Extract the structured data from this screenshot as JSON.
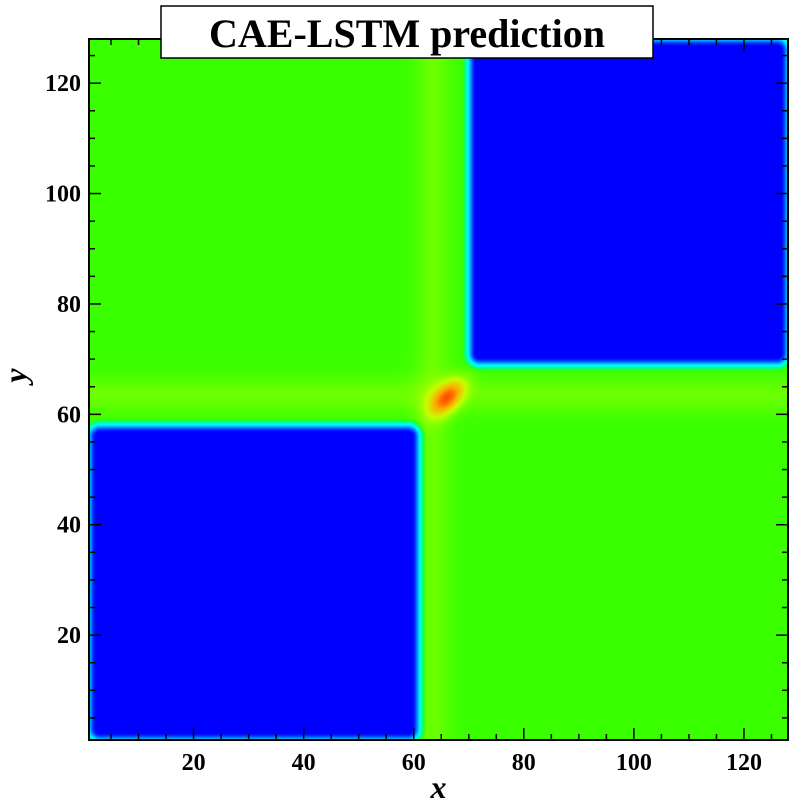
{
  "chart_data": {
    "type": "heatmap",
    "title": "CAE-LSTM prediction",
    "xlabel": "x",
    "ylabel": "y",
    "xlim": [
      1,
      128
    ],
    "ylim": [
      1,
      128
    ],
    "xticks": [
      20,
      40,
      60,
      80,
      100,
      120
    ],
    "yticks": [
      20,
      40,
      60,
      80,
      100,
      120
    ],
    "minor_tick_step": 5,
    "grid": false,
    "colormap": [
      "#0000ff",
      "#0096ff",
      "#00ffff",
      "#00ff96",
      "#39ff00",
      "#c8ff00",
      "#ffaa00",
      "#ff5000"
    ],
    "field": {
      "description_values": "piecewise levels on a 128x128 domain",
      "background_level": 0.72,
      "low_level": 0.0,
      "blue_regions": [
        {
          "x": [
            1,
            61
          ],
          "y": [
            1,
            58
          ]
        },
        {
          "x": [
            70,
            128
          ],
          "y": [
            69,
            128
          ]
        }
      ],
      "interface_lines": {
        "x": 63.5,
        "y": 63.5
      },
      "peak": {
        "x": 66,
        "y": 63,
        "level": 1.0
      }
    }
  }
}
